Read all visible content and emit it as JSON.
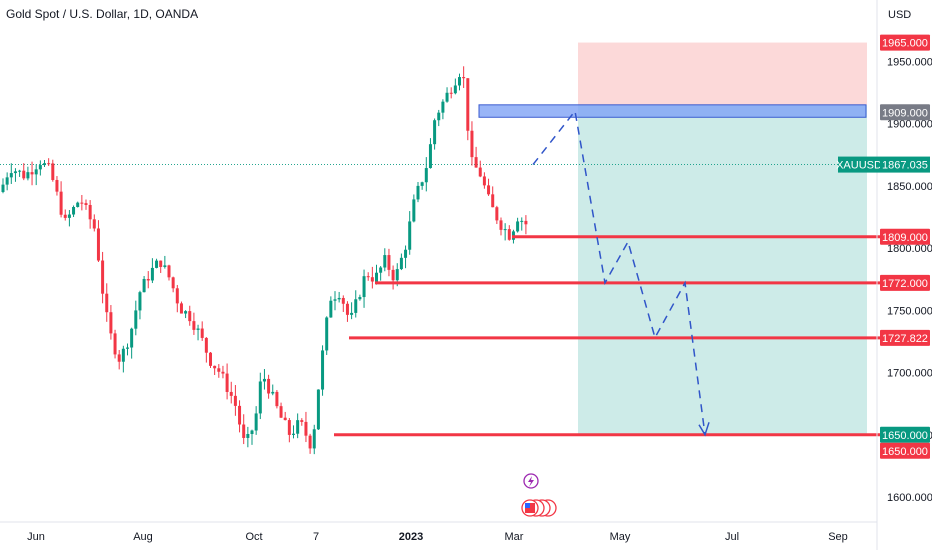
{
  "legend": {
    "title": "Gold Spot / U.S. Dollar, 1D, OANDA"
  },
  "currency": "USD",
  "chart_data": {
    "type": "candlestick",
    "title": "Gold Spot / U.S. Dollar, 1D, OANDA",
    "ylabel": "USD",
    "ylim": [
      1572,
      1990
    ],
    "y_ticks": [
      "1950.000",
      "1900.000",
      "1850.000",
      "1800.000",
      "1750.000",
      "1700.000",
      "1650.000",
      "1600.000"
    ],
    "x_ticks": [
      "Jun",
      "Aug",
      "Oct",
      "7",
      "2023",
      "Mar",
      "May",
      "Jul",
      "Sep"
    ],
    "last_price": {
      "symbol": "XAUUSD",
      "value": "1867.035",
      "color": "#089981"
    },
    "price_path": [
      [
        0,
        1845
      ],
      [
        10,
        1865
      ],
      [
        25,
        1858
      ],
      [
        40,
        1870
      ],
      [
        50,
        1862
      ],
      [
        65,
        1820
      ],
      [
        80,
        1840
      ],
      [
        95,
        1815
      ],
      [
        105,
        1750
      ],
      [
        112,
        1725
      ],
      [
        120,
        1710
      ],
      [
        130,
        1730
      ],
      [
        140,
        1765
      ],
      [
        150,
        1780
      ],
      [
        160,
        1790
      ],
      [
        170,
        1775
      ],
      [
        180,
        1752
      ],
      [
        190,
        1745
      ],
      [
        200,
        1730
      ],
      [
        210,
        1710
      ],
      [
        220,
        1700
      ],
      [
        235,
        1675
      ],
      [
        245,
        1640
      ],
      [
        255,
        1660
      ],
      [
        262,
        1700
      ],
      [
        270,
        1685
      ],
      [
        280,
        1665
      ],
      [
        290,
        1650
      ],
      [
        300,
        1660
      ],
      [
        312,
        1640
      ],
      [
        320,
        1700
      ],
      [
        330,
        1760
      ],
      [
        340,
        1765
      ],
      [
        350,
        1740
      ],
      [
        358,
        1760
      ],
      [
        366,
        1780
      ],
      [
        375,
        1775
      ],
      [
        385,
        1790
      ],
      [
        395,
        1775
      ],
      [
        405,
        1800
      ],
      [
        415,
        1840
      ],
      [
        420,
        1850
      ],
      [
        428,
        1870
      ],
      [
        435,
        1905
      ],
      [
        445,
        1920
      ],
      [
        455,
        1935
      ],
      [
        462,
        1945
      ],
      [
        466,
        1920
      ],
      [
        470,
        1870
      ],
      [
        480,
        1860
      ],
      [
        490,
        1835
      ],
      [
        500,
        1820
      ],
      [
        510,
        1810
      ],
      [
        520,
        1830
      ],
      [
        525,
        1809
      ],
      [
        530,
        1867
      ]
    ],
    "annotations": {
      "entry_zone_label": "1909.000",
      "stop_label": "1965.000",
      "target_labels": [
        "1809.000",
        "1772.000",
        "1727.822",
        "1650.000",
        "1650.000"
      ]
    },
    "colors": {
      "up": "#089981",
      "down": "#f23645",
      "target_line": "#f23645",
      "stop_zone": "#fcd9d9",
      "profit_zone": "#cdebe8",
      "entry_zone": "#7fa2f5",
      "entry_tag": "#787b86",
      "path": "#3055c9"
    },
    "grid": false
  }
}
